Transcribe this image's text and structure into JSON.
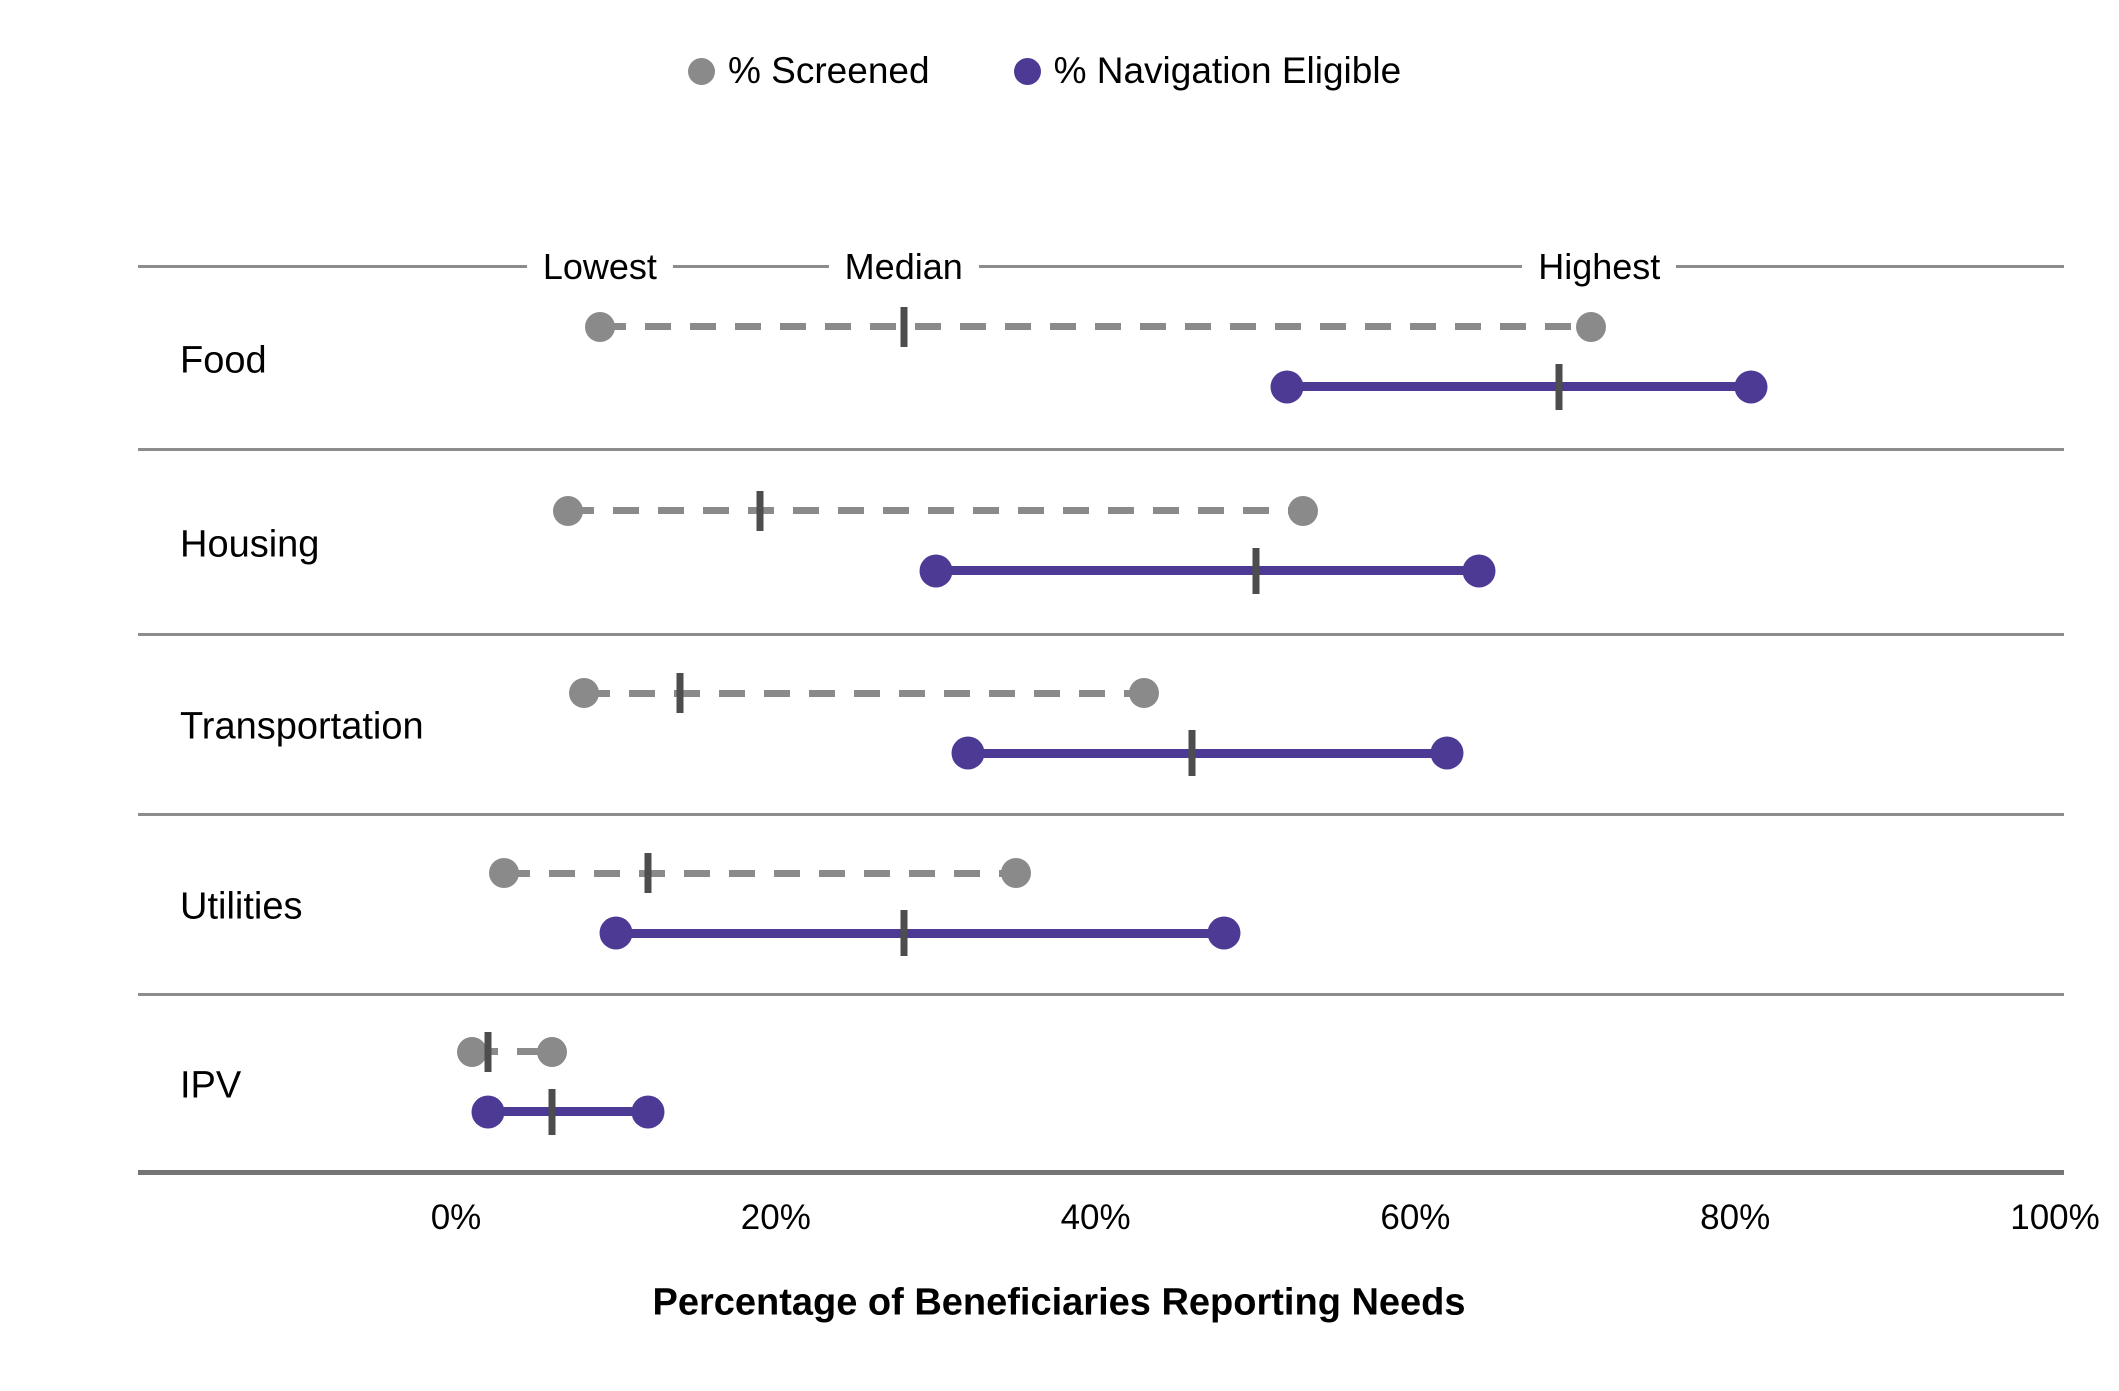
{
  "legend": [
    {
      "label": "% Screened",
      "color": "#8a8a8a",
      "marker": "circle-icon"
    },
    {
      "label": "% Navigation Eligible",
      "color": "#4c3a94",
      "marker": "circle-icon"
    }
  ],
  "x_axis": {
    "ticks": [
      "0%",
      "20%",
      "40%",
      "60%",
      "80%",
      "100%"
    ],
    "tick_values": [
      0,
      20,
      40,
      60,
      80,
      100
    ],
    "title": "Percentage of Beneficiaries Reporting Needs"
  },
  "chart_data": {
    "type": "dumbbell-range",
    "title": "",
    "xlabel": "Percentage of Beneficiaries Reporting Needs",
    "xlim": [
      0,
      100
    ],
    "grid": false,
    "legend_position": "top",
    "range_annotations": [
      "Lowest",
      "Median",
      "Highest"
    ],
    "categories": [
      "Food",
      "Housing",
      "Transportation",
      "Utilities",
      "IPV"
    ],
    "series": [
      {
        "name": "% Screened",
        "color": "#8a8a8a",
        "line_style": "dashed",
        "median_tick_color": "#4d4d4d",
        "values": [
          {
            "lowest": 9,
            "median": 28,
            "highest": 71
          },
          {
            "lowest": 7,
            "median": 19,
            "highest": 53
          },
          {
            "lowest": 8,
            "median": 14,
            "highest": 43
          },
          {
            "lowest": 3,
            "median": 12,
            "highest": 35
          },
          {
            "lowest": 1,
            "median": 2,
            "highest": 6
          }
        ]
      },
      {
        "name": "% Navigation Eligible",
        "color": "#4c3a94",
        "line_style": "solid",
        "median_tick_color": "#4d4d4d",
        "values": [
          {
            "lowest": 52,
            "median": 69,
            "highest": 81
          },
          {
            "lowest": 30,
            "median": 50,
            "highest": 64
          },
          {
            "lowest": 32,
            "median": 46,
            "highest": 62
          },
          {
            "lowest": 10,
            "median": 28,
            "highest": 48
          },
          {
            "lowest": 2,
            "median": 6,
            "highest": 12
          }
        ]
      }
    ]
  }
}
